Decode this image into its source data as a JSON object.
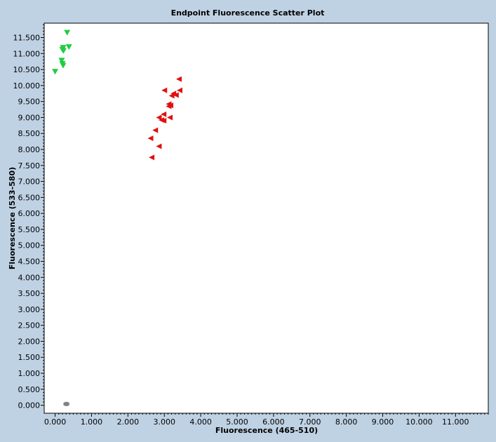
{
  "chart_data": {
    "type": "scatter",
    "title": "Endpoint Fluorescence Scatter Plot",
    "xlabel": "Fluorescence (465-510)",
    "ylabel": "Fluorescence (533-580)",
    "xlim": [
      -0.3,
      11.9
    ],
    "ylim": [
      -0.25,
      11.95
    ],
    "x_ticks": [
      "0.000",
      "1.000",
      "2.000",
      "3.000",
      "4.000",
      "5.000",
      "6.000",
      "7.000",
      "8.000",
      "9.000",
      "10.000",
      "11.000"
    ],
    "y_ticks": [
      "0.000",
      "0.500",
      "1.000",
      "1.500",
      "2.000",
      "2.500",
      "3.000",
      "3.500",
      "4.000",
      "4.500",
      "5.000",
      "5.500",
      "6.000",
      "6.500",
      "7.000",
      "7.500",
      "8.000",
      "8.500",
      "9.000",
      "9.500",
      "10.000",
      "10.500",
      "11.000",
      "11.500"
    ],
    "grid": false,
    "legend": "none",
    "background": "#bfd2e4",
    "plot_background": "#ffffff",
    "series": [
      {
        "marker": "triangle-down",
        "color": "#22cc44",
        "points": [
          [
            0.33,
            11.65
          ],
          [
            0.38,
            11.2
          ],
          [
            0.22,
            11.18
          ],
          [
            0.2,
            11.12
          ],
          [
            0.23,
            11.08
          ],
          [
            0.18,
            10.78
          ],
          [
            0.2,
            10.68
          ],
          [
            0.22,
            10.62
          ],
          [
            0.0,
            10.43
          ]
        ]
      },
      {
        "marker": "triangle-left",
        "color": "#e01010",
        "points": [
          [
            3.4,
            10.2
          ],
          [
            3.42,
            9.85
          ],
          [
            3.0,
            9.85
          ],
          [
            3.25,
            9.75
          ],
          [
            3.32,
            9.7
          ],
          [
            3.2,
            9.68
          ],
          [
            3.12,
            9.42
          ],
          [
            3.17,
            9.38
          ],
          [
            3.12,
            9.35
          ],
          [
            2.98,
            9.1
          ],
          [
            2.85,
            9.0
          ],
          [
            3.15,
            9.0
          ],
          [
            2.92,
            8.92
          ],
          [
            2.98,
            8.9
          ],
          [
            2.75,
            8.6
          ],
          [
            2.62,
            8.35
          ],
          [
            2.85,
            8.1
          ],
          [
            2.65,
            7.75
          ]
        ]
      },
      {
        "marker": "asterisk",
        "color": "#808080",
        "points": [
          [
            0.28,
            0.04
          ],
          [
            0.31,
            0.04
          ],
          [
            0.34,
            0.04
          ]
        ]
      }
    ]
  }
}
